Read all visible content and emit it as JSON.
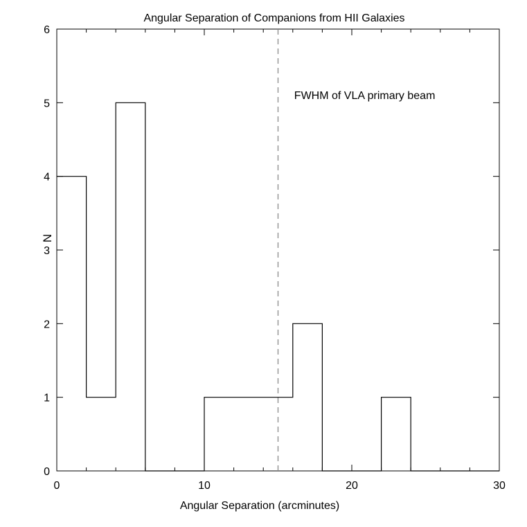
{
  "chart_data": {
    "type": "bar",
    "title": "Angular Separation of Companions from HII Galaxies",
    "xlabel": "Angular Separation (arcminutes)",
    "ylabel": "N",
    "xlim": [
      0,
      30
    ],
    "ylim": [
      0,
      6
    ],
    "x_ticks": [
      0,
      10,
      20,
      30
    ],
    "y_ticks": [
      0,
      1,
      2,
      3,
      4,
      5,
      6
    ],
    "bin_width": 2,
    "bin_edges": [
      0,
      2,
      4,
      6,
      8,
      10,
      12,
      14,
      16,
      18,
      20,
      22,
      24,
      26,
      28,
      30
    ],
    "values": [
      4,
      1,
      5,
      0,
      0,
      1,
      1,
      1,
      2,
      0,
      0,
      1,
      0,
      0,
      0
    ],
    "reference_line": {
      "x": 15,
      "style": "dashed",
      "color": "#888888"
    },
    "annotation": {
      "text": "FWHM of VLA primary beam",
      "x": 16,
      "y": 5.05
    },
    "grid": false,
    "line_color": "#000000"
  }
}
